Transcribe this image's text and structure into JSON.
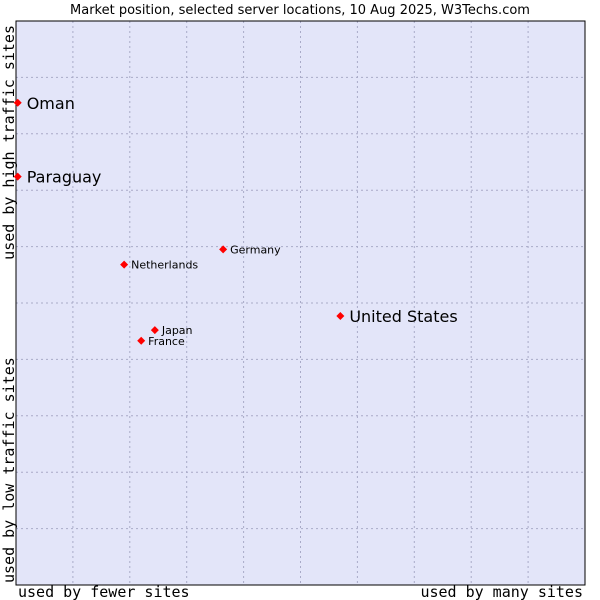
{
  "chart_data": {
    "type": "scatter",
    "title": "Market position, selected server locations, 10 Aug 2025, W3Techs.com",
    "xlabel_left": "used by fewer sites",
    "xlabel_right": "used by many sites",
    "ylabel_top": "used by high traffic sites",
    "ylabel_bottom": "used by low traffic sites",
    "xlim": [
      0,
      100
    ],
    "ylim": [
      0,
      100
    ],
    "grid": true,
    "points": [
      {
        "name": "Oman",
        "x": 0.3,
        "y": 85.5,
        "size": "large"
      },
      {
        "name": "Paraguay",
        "x": 0.3,
        "y": 72.4,
        "size": "large"
      },
      {
        "name": "Germany",
        "x": 36.4,
        "y": 59.5,
        "size": "small"
      },
      {
        "name": "Netherlands",
        "x": 19.0,
        "y": 56.8,
        "size": "small"
      },
      {
        "name": "United States",
        "x": 57.0,
        "y": 47.7,
        "size": "large"
      },
      {
        "name": "Japan",
        "x": 24.4,
        "y": 45.2,
        "size": "small"
      },
      {
        "name": "France",
        "x": 22.0,
        "y": 43.3,
        "size": "small"
      }
    ]
  },
  "colors": {
    "plot_bg": "#e3e5f9",
    "grid": "#a9aac8",
    "marker": "#ff0000",
    "border": "#000000"
  }
}
